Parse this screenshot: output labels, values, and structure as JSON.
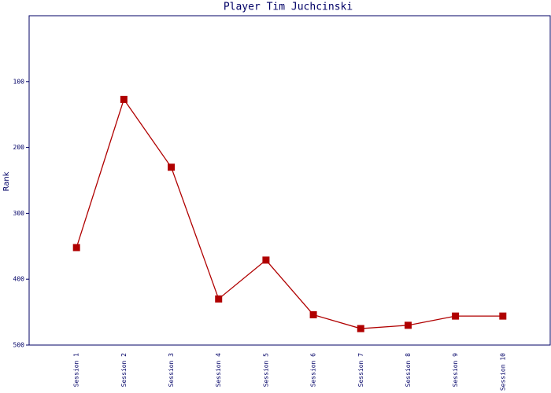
{
  "chart_data": {
    "type": "line",
    "title": "Player Tim Juchcinski",
    "y_label": "Rank",
    "categories": [
      "Session 1",
      "Session 2",
      "Session 3",
      "Session 4",
      "Session 5",
      "Session 6",
      "Session 7",
      "Session 8",
      "Session 9",
      "Session 10"
    ],
    "series": [
      {
        "name": "Rank",
        "color": "#b00000",
        "values": [
          352,
          127,
          230,
          430,
          371,
          454,
          475,
          470,
          456,
          456
        ]
      }
    ],
    "ylim": [
      500,
      0
    ],
    "yticks": [
      100,
      200,
      300,
      400,
      500
    ],
    "grid": false
  }
}
